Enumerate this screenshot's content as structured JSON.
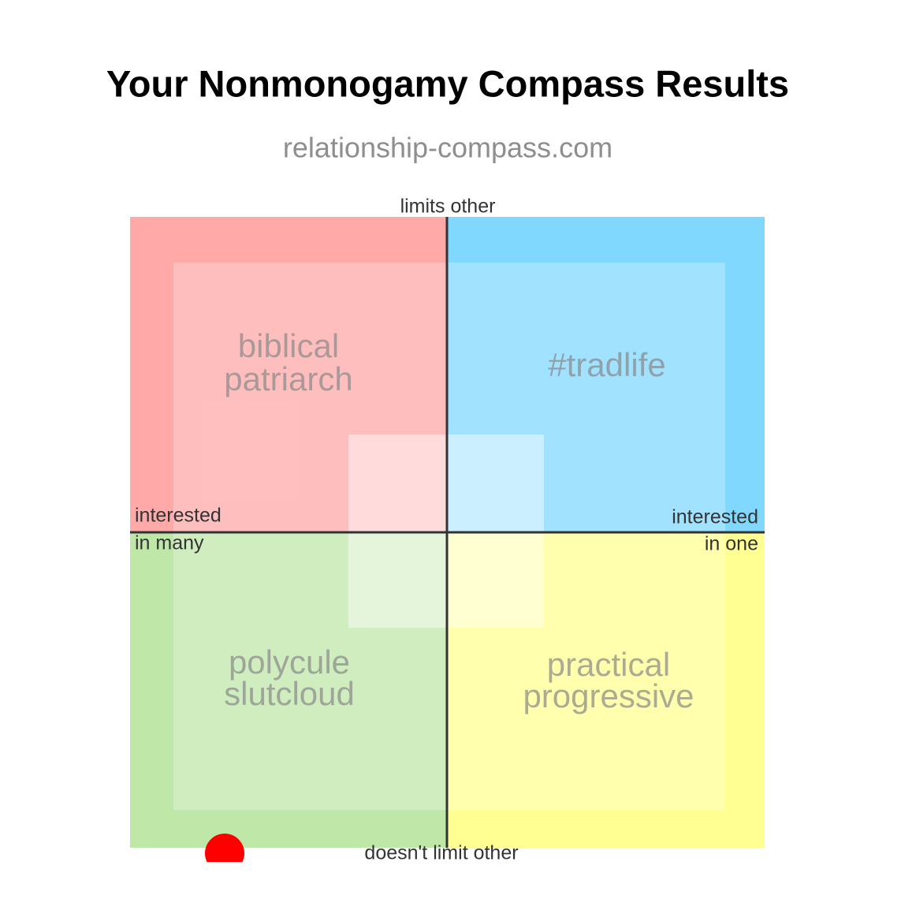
{
  "header": {
    "title": "Your Nonmonogamy Compass Results",
    "subtitle": "relationship-compass.com"
  },
  "compass": {
    "axes": {
      "top": "limits other",
      "bottom": "doesn't limit other",
      "left": [
        "interested",
        "in many"
      ],
      "right": [
        "interested",
        "in one"
      ]
    },
    "quadrants": [
      {
        "lines": [
          "biblical",
          "patriarch"
        ]
      },
      {
        "lines": [
          "#tradlife"
        ]
      },
      {
        "lines": [
          "polycule",
          "slutcloud"
        ]
      },
      {
        "lines": [
          "practical",
          "progressive"
        ]
      }
    ]
  }
}
